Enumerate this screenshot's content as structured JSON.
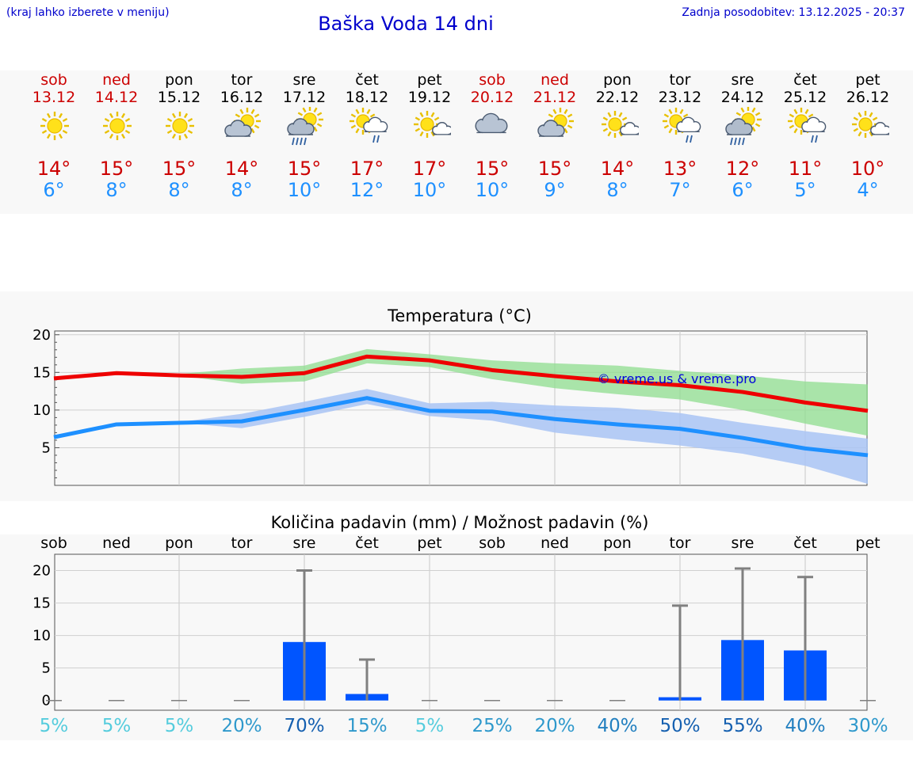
{
  "header": {
    "hint": "(kraj lahko izberete v meniju)",
    "title": "Baška Voda 14 dni",
    "updated": "Zadnja posodobitev: 13.12.2025 - 20:37"
  },
  "days": [
    {
      "name": "sob",
      "date": "13.12",
      "weekend": true,
      "icon": "sunny-icon",
      "tmax": "14°",
      "tmin": "6°"
    },
    {
      "name": "ned",
      "date": "14.12",
      "weekend": true,
      "icon": "sunny-icon",
      "tmax": "15°",
      "tmin": "8°"
    },
    {
      "name": "pon",
      "date": "15.12",
      "weekend": false,
      "icon": "sunny-icon",
      "tmax": "15°",
      "tmin": "8°"
    },
    {
      "name": "tor",
      "date": "16.12",
      "weekend": false,
      "icon": "partly-cloudy-icon",
      "tmax": "14°",
      "tmin": "8°"
    },
    {
      "name": "sre",
      "date": "17.12",
      "weekend": false,
      "icon": "rain-sun-cloud-icon",
      "tmax": "15°",
      "tmin": "10°"
    },
    {
      "name": "čet",
      "date": "18.12",
      "weekend": false,
      "icon": "light-rain-sun-cloud-icon",
      "tmax": "17°",
      "tmin": "12°"
    },
    {
      "name": "pet",
      "date": "19.12",
      "weekend": false,
      "icon": "sun-small-cloud-icon",
      "tmax": "17°",
      "tmin": "10°"
    },
    {
      "name": "sob",
      "date": "20.12",
      "weekend": true,
      "icon": "cloudy-icon",
      "tmax": "15°",
      "tmin": "10°"
    },
    {
      "name": "ned",
      "date": "21.12",
      "weekend": true,
      "icon": "partly-cloudy-icon",
      "tmax": "15°",
      "tmin": "9°"
    },
    {
      "name": "pon",
      "date": "22.12",
      "weekend": false,
      "icon": "sun-small-cloud-icon",
      "tmax": "14°",
      "tmin": "8°"
    },
    {
      "name": "tor",
      "date": "23.12",
      "weekend": false,
      "icon": "light-rain-sun-cloud-icon",
      "tmax": "13°",
      "tmin": "7°"
    },
    {
      "name": "sre",
      "date": "24.12",
      "weekend": false,
      "icon": "rain-sun-cloud-icon",
      "tmax": "12°",
      "tmin": "6°"
    },
    {
      "name": "čet",
      "date": "25.12",
      "weekend": false,
      "icon": "light-rain-sun-cloud-icon",
      "tmax": "11°",
      "tmin": "5°"
    },
    {
      "name": "pet",
      "date": "26.12",
      "weekend": false,
      "icon": "sun-small-cloud-icon",
      "tmax": "10°",
      "tmin": "4°"
    }
  ],
  "chart_data": [
    {
      "type": "line",
      "title": "Temperatura (°C)",
      "watermark": "© vreme.us & vreme.pro",
      "ylim": [
        0,
        20.5
      ],
      "yticks": [
        "20",
        "15",
        "10",
        "5"
      ],
      "ytick_values": [
        20,
        15,
        10,
        5
      ],
      "x": [
        0,
        1,
        2,
        3,
        4,
        5,
        6,
        7,
        8,
        9,
        10,
        11,
        12,
        13
      ],
      "series": [
        {
          "name": "max",
          "color": "#ee0000",
          "values": [
            14.2,
            14.9,
            14.6,
            14.4,
            14.9,
            17.1,
            16.6,
            15.3,
            14.5,
            13.8,
            13.3,
            12.4,
            11.0,
            9.9
          ],
          "band_low": [
            14.2,
            14.9,
            14.6,
            13.5,
            13.8,
            16.2,
            15.7,
            14.1,
            12.9,
            12.1,
            11.4,
            10.0,
            8.2,
            6.6
          ],
          "band_high": [
            14.2,
            14.9,
            14.8,
            15.5,
            15.9,
            18.1,
            17.4,
            16.6,
            16.2,
            15.9,
            15.2,
            14.6,
            13.8,
            13.4
          ],
          "band_color": "#8fdd8f"
        },
        {
          "name": "min",
          "color": "#1e90ff",
          "values": [
            6.4,
            8.1,
            8.3,
            8.5,
            10.0,
            11.6,
            9.9,
            9.8,
            8.8,
            8.1,
            7.5,
            6.3,
            4.9,
            4.0
          ],
          "band_low": [
            6.4,
            8.1,
            8.3,
            7.6,
            9.1,
            10.8,
            9.2,
            8.6,
            7.0,
            6.1,
            5.3,
            4.2,
            2.6,
            0.2
          ],
          "band_high": [
            6.4,
            8.1,
            8.4,
            9.5,
            11.1,
            12.8,
            10.9,
            11.1,
            10.6,
            10.3,
            9.6,
            8.3,
            7.2,
            6.2
          ],
          "band_color": "#a9c4f5"
        }
      ]
    },
    {
      "type": "bar",
      "title": "Količina padavin (mm) / Možnost padavin (%)",
      "categories": [
        "sob",
        "ned",
        "pon",
        "tor",
        "sre",
        "čet",
        "pet",
        "sob",
        "ned",
        "pon",
        "tor",
        "sre",
        "čet",
        "pet"
      ],
      "ylim": [
        -1.5,
        22.5
      ],
      "yticks": [
        "20",
        "15",
        "10",
        "5",
        "0"
      ],
      "ytick_values": [
        20,
        15,
        10,
        5,
        0
      ],
      "values": [
        0,
        0,
        0,
        0,
        9,
        1,
        0,
        0,
        0,
        0,
        0.5,
        9.3,
        7.7,
        0
      ],
      "error_high": [
        0,
        0,
        0,
        0,
        20,
        6.3,
        0,
        0,
        0,
        0,
        14.6,
        20.3,
        19,
        0
      ],
      "probability": [
        "5%",
        "5%",
        "5%",
        "20%",
        "70%",
        "15%",
        "5%",
        "25%",
        "20%",
        "40%",
        "50%",
        "55%",
        "40%",
        "30%"
      ],
      "probability_colors": [
        "#55ccdd",
        "#55ccdd",
        "#55ccdd",
        "#2f99cc",
        "#1560b0",
        "#2f99cc",
        "#55ccdd",
        "#2f99cc",
        "#2f99cc",
        "#2380c0",
        "#1560b0",
        "#1560b0",
        "#2380c0",
        "#2f99cc"
      ],
      "bar_color": "#0055ff",
      "error_color": "#808080"
    }
  ]
}
